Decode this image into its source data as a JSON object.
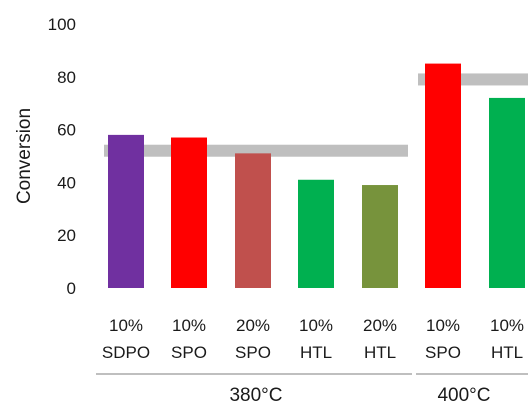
{
  "chart_data": {
    "type": "bar",
    "ylabel": "Conversion",
    "ylim": [
      0,
      100
    ],
    "yticks": [
      0,
      20,
      40,
      60,
      80,
      100
    ],
    "grid": false,
    "categories": [
      {
        "line1": "10%",
        "line2": "SDPO",
        "value": 58,
        "color": "#7030a0",
        "group": 0
      },
      {
        "line1": "10%",
        "line2": "SPO",
        "value": 57,
        "color": "#ff0000",
        "group": 0
      },
      {
        "line1": "20%",
        "line2": "SPO",
        "value": 51,
        "color": "#c0504d",
        "group": 0
      },
      {
        "line1": "10%",
        "line2": "HTL",
        "value": 41,
        "color": "#00b050",
        "group": 0
      },
      {
        "line1": "20%",
        "line2": "HTL",
        "value": 39,
        "color": "#77933c",
        "group": 0
      },
      {
        "line1": "10%",
        "line2": "SPO",
        "value": 85,
        "color": "#ff0000",
        "group": 1
      },
      {
        "line1": "10%",
        "line2": "HTL",
        "value": 72,
        "color": "#00b050",
        "group": 1
      }
    ],
    "groups": [
      {
        "label": "380°C",
        "reference": 52
      },
      {
        "label": "400°C",
        "reference": 79
      }
    ],
    "reference_color": "#bfbfbf"
  }
}
